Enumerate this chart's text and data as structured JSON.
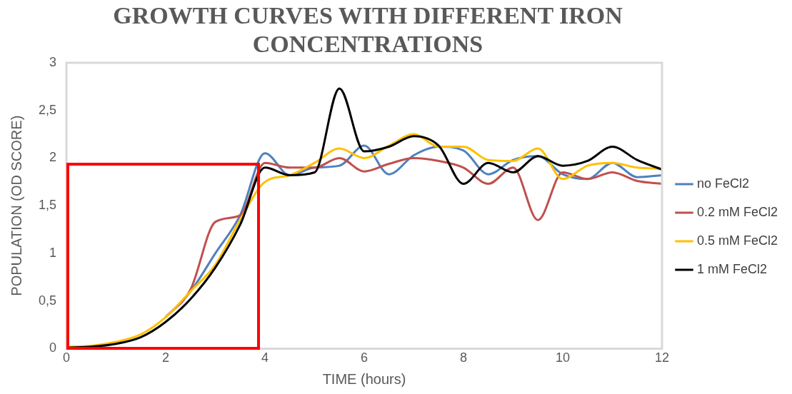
{
  "chart_data": {
    "type": "line",
    "title": "GROWTH CURVES WITH DIFFERENT IRON CONCENTRATIONS",
    "xlabel": "TIME (hours)",
    "ylabel": "POPULATION (OD SCORE)",
    "x": [
      0,
      0.5,
      1,
      1.5,
      2,
      2.5,
      3,
      3.5,
      4,
      4.5,
      5,
      5.5,
      6,
      6.5,
      7,
      7.5,
      8,
      8.5,
      9,
      9.5,
      10,
      10.5,
      11,
      11.5,
      12
    ],
    "series": [
      {
        "name": "no FeCl2",
        "color": "#4f81bd",
        "values": [
          null,
          null,
          null,
          null,
          0.33,
          0.6,
          1.0,
          1.4,
          2.05,
          1.82,
          1.9,
          1.92,
          2.13,
          1.83,
          2.03,
          2.12,
          2.08,
          1.83,
          1.98,
          2.02,
          1.83,
          1.78,
          1.95,
          1.8,
          1.82
        ]
      },
      {
        "name": "0.2 mM FeCl2",
        "color": "#c0504d",
        "values": [
          null,
          null,
          null,
          null,
          0.33,
          0.62,
          1.33,
          1.4,
          1.95,
          1.9,
          1.9,
          2.0,
          1.86,
          1.94,
          2.0,
          1.97,
          1.9,
          1.73,
          1.9,
          1.35,
          1.85,
          1.78,
          1.85,
          1.76,
          1.73
        ]
      },
      {
        "name": "0.5 mM FeCl2",
        "color": "#ffc000",
        "values": [
          0.02,
          0.03,
          0.07,
          0.15,
          0.33,
          0.6,
          0.88,
          1.35,
          1.75,
          1.82,
          1.95,
          2.1,
          2.0,
          2.13,
          2.25,
          2.12,
          2.12,
          1.98,
          1.97,
          2.1,
          1.78,
          1.92,
          1.95,
          1.9,
          1.89
        ]
      },
      {
        "name": "1 mM FeCl2",
        "color": "#000000",
        "values": [
          0.01,
          0.02,
          0.05,
          0.12,
          0.28,
          0.52,
          0.85,
          1.3,
          1.9,
          1.82,
          1.85,
          2.73,
          2.07,
          2.12,
          2.23,
          2.13,
          1.73,
          1.95,
          1.85,
          2.02,
          1.92,
          1.97,
          2.12,
          1.98,
          1.88
        ]
      }
    ],
    "xlim": [
      0,
      12
    ],
    "xticks": [
      0,
      2,
      4,
      6,
      8,
      10,
      12
    ],
    "ylim": [
      0,
      3
    ],
    "yticks": [
      0,
      {
        "value": 0.5,
        "label": "0,5"
      },
      1,
      {
        "value": 1.5,
        "label": "1,5"
      },
      2,
      {
        "value": 2.5,
        "label": "2,5"
      },
      3
    ],
    "grid": false,
    "legend": "right",
    "marker": "none",
    "line_style": "solid"
  }
}
